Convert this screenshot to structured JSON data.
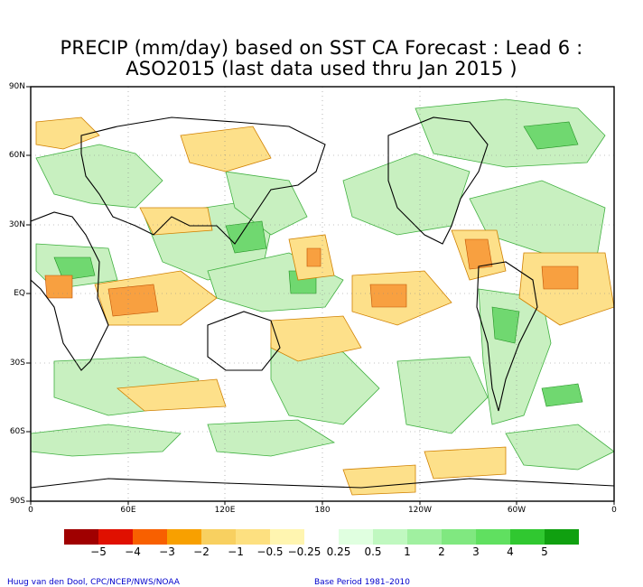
{
  "title_line1": "PRECIP (mm/day) based on SST CA Forecast : Lead 6 :",
  "title_line2": "ASO2015 (last data used thru Jan 2015 )",
  "lat_labels": [
    "90N",
    "60N",
    "30N",
    "EQ",
    "30S",
    "60S",
    "90S"
  ],
  "lon_labels": [
    "0",
    "60E",
    "120E",
    "180",
    "120W",
    "60W",
    "0"
  ],
  "legend": {
    "colors": [
      "#a00000",
      "#e01000",
      "#f86000",
      "#f8a000",
      "#f8d060",
      "#fde080",
      "#fff5b0",
      "#ffffff",
      "#e0ffe0",
      "#c0f8c0",
      "#a0f0a0",
      "#80e880",
      "#60e060",
      "#30c830",
      "#10a010"
    ],
    "labels": [
      "−5",
      "−4",
      "−3",
      "−2",
      "−1",
      "−0.5",
      "−0.25",
      "0.25",
      "0.5",
      "1",
      "2",
      "3",
      "4",
      "5"
    ]
  },
  "credit_left": "Huug van den Dool, CPC/NCEP/NWS/NOAA",
  "credit_right": "Base Period 1981–2010"
}
